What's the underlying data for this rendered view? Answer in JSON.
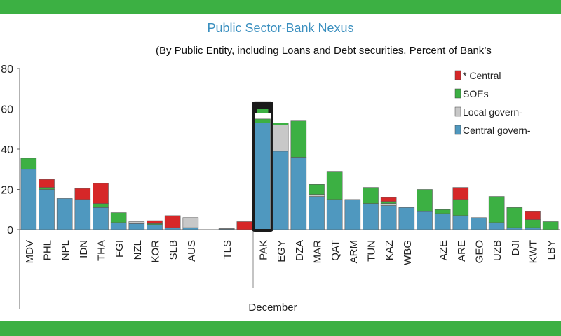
{
  "chart_data": {
    "type": "bar",
    "stacked": true,
    "title": "Public Sector-Bank Nexus",
    "subtitle": "(By Public Entity, including Loans and Debt securities, Percent of Bank’s",
    "xlabel": "December",
    "ylim": [
      0,
      80
    ],
    "yticks": [
      "0",
      "20",
      "40",
      "60",
      "80"
    ],
    "grid": false,
    "legend_position": "top-right",
    "highlight_category": "PAK",
    "categories": [
      "MDV",
      "PHL",
      "NPL",
      "IDN",
      "THA",
      "FGI",
      "NZL",
      "KOR",
      "SLB",
      "AUS",
      "",
      "TLS",
      "",
      "PAK",
      "EGY",
      "DZA",
      "MAR",
      "QAT",
      "ARM",
      "TUN",
      "KAZ",
      "WBG",
      "",
      "AZE",
      "ARE",
      "GEO",
      "UZB",
      "DJI",
      "KWT",
      "LBY"
    ],
    "series": [
      {
        "name": "Central govern-",
        "color": "#4f98bf",
        "values": [
          30,
          20,
          15.5,
          15,
          11,
          3.5,
          3,
          2.5,
          1,
          1,
          0,
          0.3,
          0,
          53,
          39,
          36,
          16.5,
          15,
          15,
          13,
          12,
          11,
          9,
          8,
          7,
          6,
          3.5,
          1,
          1,
          0
        ]
      },
      {
        "name": "Local govern-",
        "color": "#c8c8c8",
        "values": [
          0,
          0,
          0,
          0,
          0,
          0,
          1,
          0,
          0,
          5,
          0,
          0.3,
          0,
          0,
          13,
          0,
          1,
          0,
          0,
          0,
          1,
          0,
          0,
          0,
          0,
          0,
          0,
          0,
          0,
          0
        ]
      },
      {
        "name": "SOEs",
        "color": "#3cb043",
        "values": [
          5.5,
          1,
          0,
          0,
          2,
          5,
          0,
          0.5,
          0,
          0,
          0,
          0,
          0,
          2,
          1,
          18,
          5,
          14,
          0,
          8,
          1,
          0,
          11,
          2,
          8,
          0,
          13,
          10,
          4,
          4
        ]
      },
      {
        "name": "* Central",
        "color": "#d62728",
        "values": [
          0,
          4,
          0,
          5.5,
          10,
          0,
          0,
          1.5,
          6,
          0,
          0,
          0,
          4,
          0,
          0,
          0,
          0,
          0,
          0,
          0,
          2,
          0,
          0,
          0,
          6,
          0,
          0,
          0,
          4,
          0
        ]
      }
    ]
  }
}
